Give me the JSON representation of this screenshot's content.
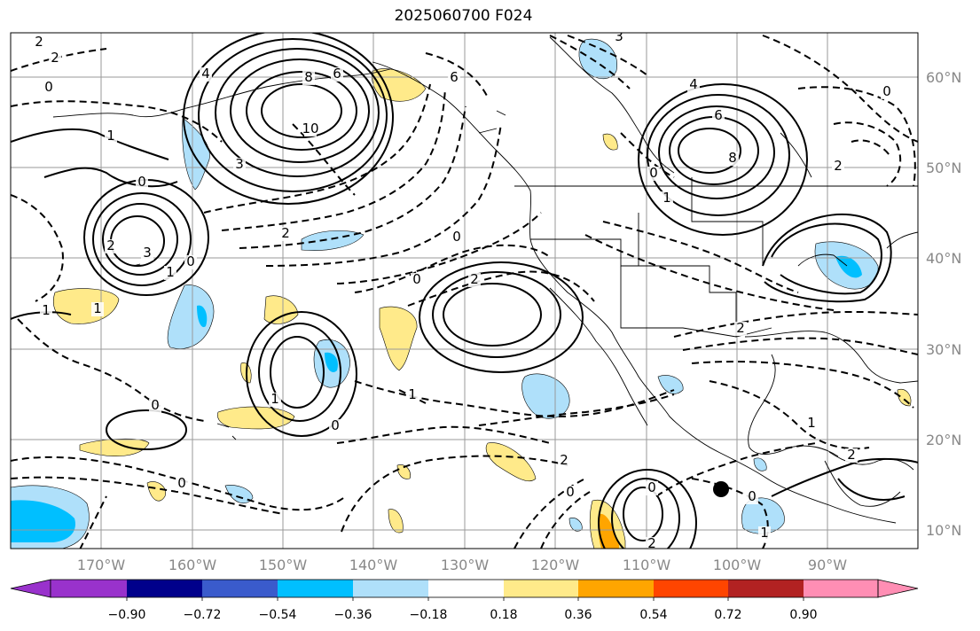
{
  "title": "2025060700 F024",
  "map": {
    "lon_ticks": [
      "170°W",
      "160°W",
      "150°W",
      "140°W",
      "130°W",
      "120°W",
      "110°W",
      "100°W",
      "90°W"
    ],
    "lat_ticks": [
      "60°N",
      "50°N",
      "40°N",
      "30°N",
      "20°N",
      "10°N"
    ],
    "extent": {
      "lon_min": -180,
      "lon_max": -80,
      "lat_min": 8,
      "lat_max": 66
    },
    "contour_labels": [
      "2",
      "2",
      "0",
      "4",
      "8",
      "6",
      "10",
      "1",
      "3",
      "0",
      "2",
      "3",
      "0",
      "1",
      "2",
      "0",
      "6",
      "3",
      "4",
      "6",
      "8",
      "0",
      "1",
      "0",
      "2",
      "0",
      "2",
      "1",
      "2",
      "1",
      "0",
      "2",
      "1",
      "1",
      "0",
      "0",
      "0",
      "1",
      "2",
      "0",
      "1",
      "2",
      "0"
    ]
  },
  "colorbar": {
    "levels": [
      "−0.90",
      "−0.72",
      "−0.54",
      "−0.36",
      "−0.18",
      "0.18",
      "0.36",
      "0.54",
      "0.72",
      "0.90"
    ],
    "colors": [
      "#9932cc",
      "#00008b",
      "#3a5bcc",
      "#00bfff",
      "#afe0fa",
      "#ffffff",
      "#ffea8a",
      "#ffa500",
      "#ff4500",
      "#b22222",
      "#ff8eb4"
    ]
  }
}
